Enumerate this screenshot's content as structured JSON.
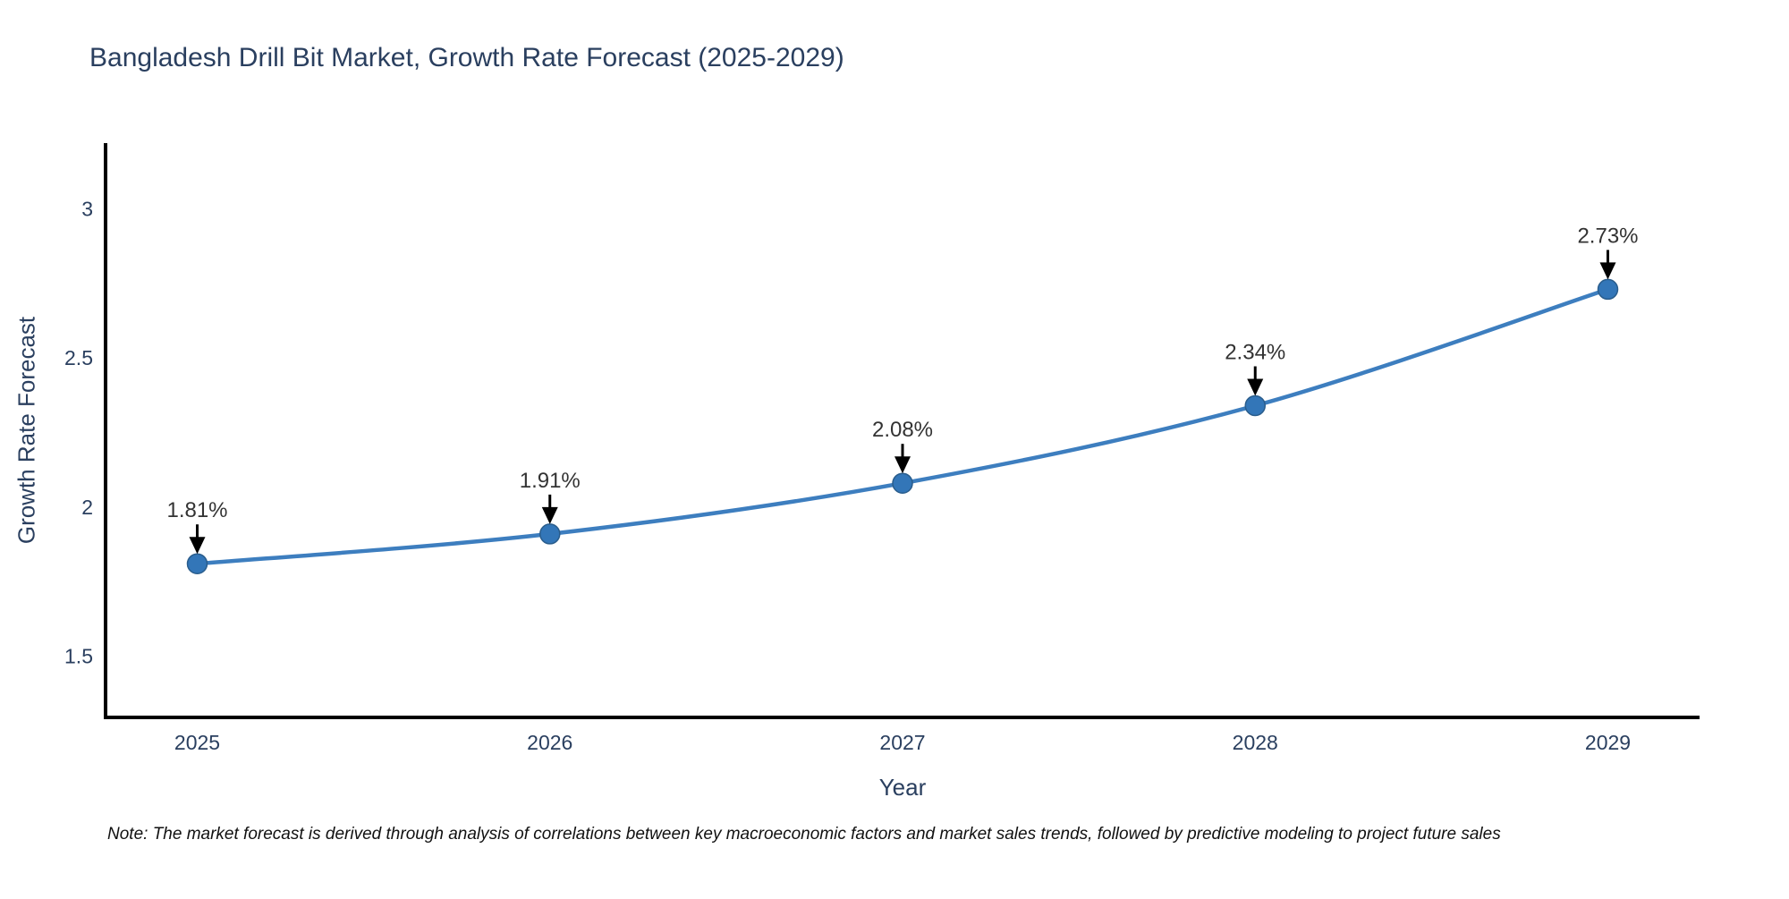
{
  "page": {
    "title": "Bangladesh Drill Bit Market, Growth Rate Forecast (2025-2029)",
    "note": "Note: The market forecast is derived through analysis of correlations between key macroeconomic factors and market sales trends, followed by predictive modeling to project future sales"
  },
  "chart_data": {
    "type": "line",
    "title": "Bangladesh Drill Bit Market, Growth Rate Forecast (2025-2029)",
    "xlabel": "Year",
    "ylabel": "Growth Rate Forecast",
    "x": [
      2025,
      2026,
      2027,
      2028,
      2029
    ],
    "series": [
      {
        "name": "Growth Rate Forecast",
        "values": [
          1.81,
          1.91,
          2.08,
          2.34,
          2.73
        ]
      }
    ],
    "point_labels": [
      "1.81%",
      "1.91%",
      "2.08%",
      "2.34%",
      "2.73%"
    ],
    "xtick_labels": [
      "2025",
      "2026",
      "2027",
      "2028",
      "2029"
    ],
    "yticks": [
      1.5,
      2,
      2.5,
      3
    ],
    "ytick_labels": [
      "1.5",
      "2",
      "2.5",
      "3"
    ],
    "xlim": [
      2024.74,
      2029.26
    ],
    "ylim": [
      1.295,
      3.22
    ],
    "grid": false,
    "legend_position": "none",
    "line_shape": "spline",
    "colors": {
      "line": "#3d7ebf",
      "marker_fill": "#3376b8",
      "marker_edge": "#2a5d8c",
      "axis_line": "#000000",
      "tick_text": "#2a3f5f",
      "annotation_text": "#333333",
      "arrow": "#000000"
    }
  }
}
